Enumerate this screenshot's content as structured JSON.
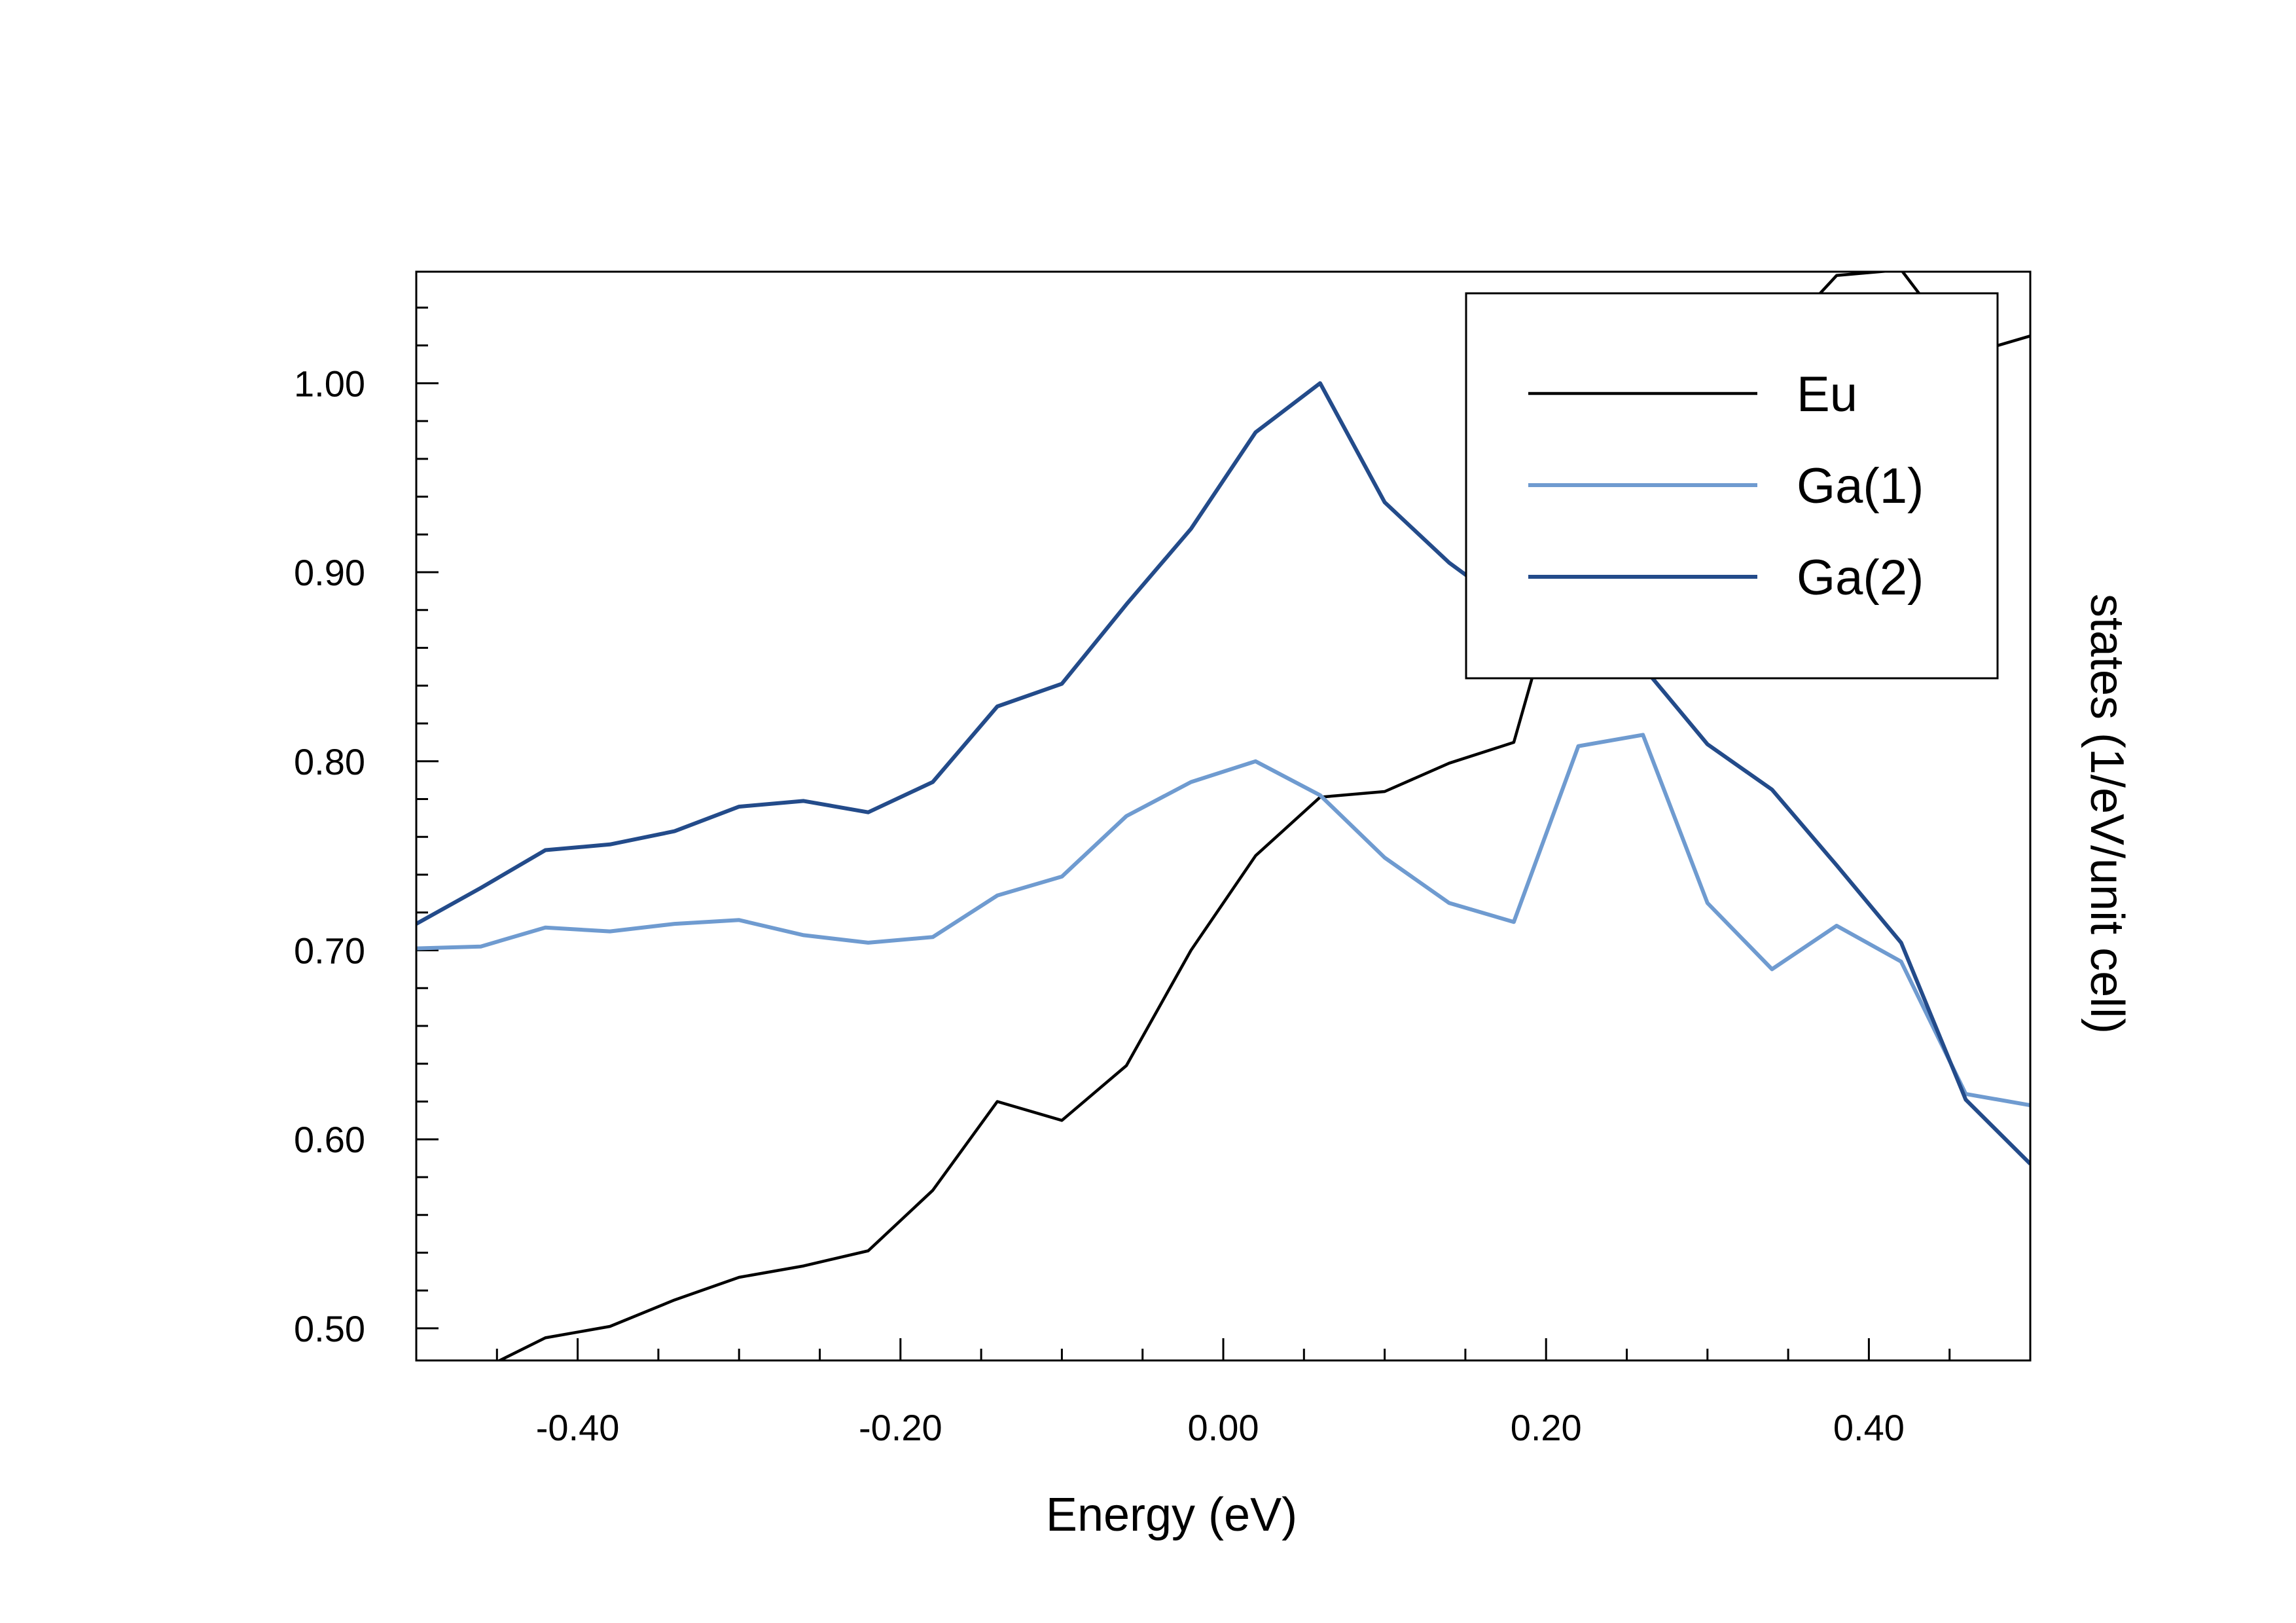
{
  "chart_data": {
    "type": "line",
    "title": "",
    "xlabel": "Energy (eV)",
    "ylabel": "states (1/eV/unit cell)",
    "xlim": [
      -0.5,
      0.5
    ],
    "ylim": [
      0.483,
      1.059
    ],
    "xticks": [
      -0.4,
      -0.2,
      0.0,
      0.2,
      0.4
    ],
    "xtick_labels": [
      "-0.40",
      "-0.20",
      "0.00",
      "0.20",
      "0.40"
    ],
    "yticks": [
      0.5,
      0.6,
      0.7,
      0.8,
      0.9,
      1.0
    ],
    "ytick_labels": [
      "0.50",
      "0.60",
      "0.70",
      "0.80",
      "0.90",
      "1.00"
    ],
    "grid": false,
    "legend_position": "top-right",
    "series": [
      {
        "name": "Eu",
        "color": "#000000",
        "x": [
          -0.46,
          -0.42,
          -0.38,
          -0.34,
          -0.3,
          -0.26,
          -0.22,
          -0.18,
          -0.14,
          -0.1,
          -0.06,
          -0.02,
          0.02,
          0.06,
          0.1,
          0.14,
          0.18,
          0.22,
          0.26,
          0.3,
          0.34,
          0.38,
          0.42,
          0.46,
          0.5
        ],
        "values": [
          0.478,
          0.495,
          0.501,
          0.515,
          0.527,
          0.533,
          0.541,
          0.573,
          0.62,
          0.61,
          0.639,
          0.7,
          0.75,
          0.781,
          0.784,
          0.799,
          0.81,
          0.93,
          0.98,
          1.01,
          1.02,
          1.057,
          1.06,
          1.015,
          1.025
        ]
      },
      {
        "name": "Ga(1)",
        "color": "#6f9bd0",
        "x": [
          -0.5,
          -0.46,
          -0.42,
          -0.38,
          -0.34,
          -0.3,
          -0.26,
          -0.22,
          -0.18,
          -0.14,
          -0.1,
          -0.06,
          -0.02,
          0.02,
          0.06,
          0.1,
          0.14,
          0.18,
          0.22,
          0.26,
          0.3,
          0.34,
          0.38,
          0.42,
          0.46,
          0.5
        ],
        "values": [
          0.701,
          0.702,
          0.712,
          0.71,
          0.714,
          0.716,
          0.708,
          0.704,
          0.707,
          0.729,
          0.739,
          0.771,
          0.789,
          0.8,
          0.782,
          0.749,
          0.725,
          0.715,
          0.808,
          0.814,
          0.725,
          0.69,
          0.713,
          0.694,
          0.624,
          0.618
        ]
      },
      {
        "name": "Ga(2)",
        "color": "#234b8a",
        "x": [
          -0.5,
          -0.46,
          -0.42,
          -0.38,
          -0.34,
          -0.3,
          -0.26,
          -0.22,
          -0.18,
          -0.14,
          -0.1,
          -0.06,
          -0.02,
          0.02,
          0.06,
          0.1,
          0.14,
          0.18,
          0.22,
          0.26,
          0.3,
          0.34,
          0.38,
          0.42,
          0.46,
          0.5
        ],
        "values": [
          0.714,
          0.733,
          0.753,
          0.756,
          0.763,
          0.776,
          0.779,
          0.773,
          0.789,
          0.829,
          0.841,
          0.883,
          0.923,
          0.974,
          1.0,
          0.937,
          0.905,
          0.88,
          0.87,
          0.85,
          0.809,
          0.785,
          0.745,
          0.704,
          0.621,
          0.587
        ]
      }
    ]
  }
}
